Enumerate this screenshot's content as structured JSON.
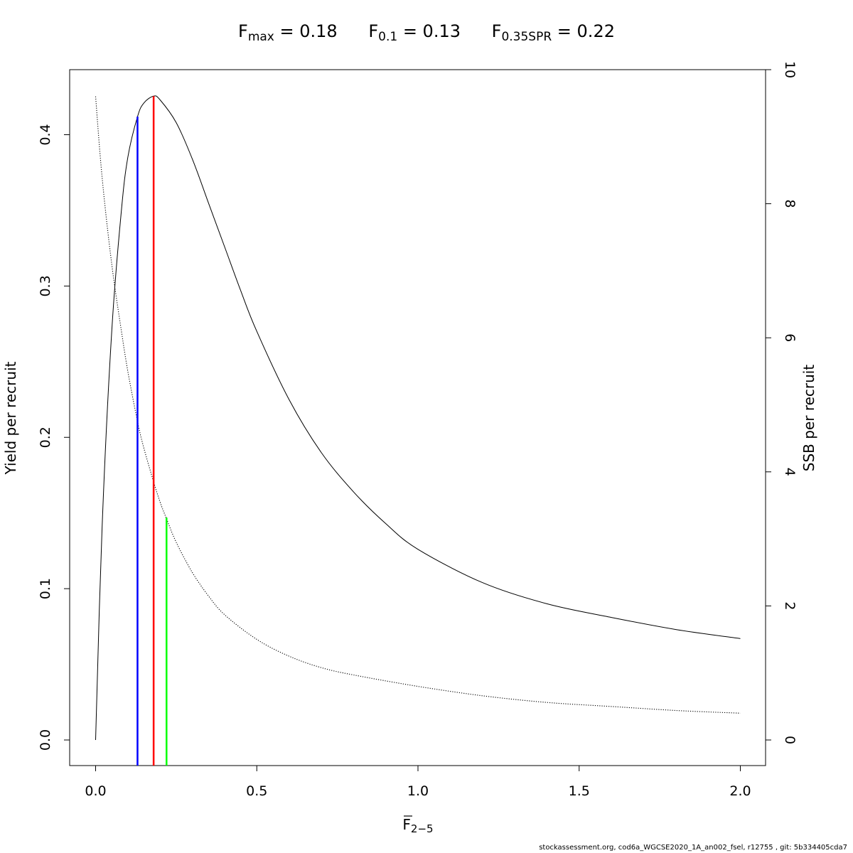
{
  "title": {
    "fmax": {
      "symbol": "F",
      "sub": "max",
      "text": " = 0.18"
    },
    "f01": {
      "symbol": "F",
      "sub": "0.1",
      "text": " = 0.13"
    },
    "fspr": {
      "symbol": "F",
      "sub": "0.35SPR",
      "text": " = 0.22"
    }
  },
  "footer": "stockassessment.org, cod6a_WGCSE2020_1A_an002_fsel, r12755 , git: 5b334405cda7",
  "chart_data": {
    "type": "line",
    "xlabel": {
      "symbol": "F",
      "sub": "2−5"
    },
    "ylabel": "Yield per recruit",
    "y2label": "SSB per recruit",
    "xlim": [
      0,
      2
    ],
    "xticks": [
      0.0,
      0.5,
      1.0,
      1.5,
      2.0
    ],
    "xtick_labels": [
      "0.0",
      "0.5",
      "1.0",
      "1.5",
      "2.0"
    ],
    "ylim": [
      0,
      0.425
    ],
    "yticks": [
      0.0,
      0.1,
      0.2,
      0.3,
      0.4
    ],
    "ytick_labels": [
      "0.0",
      "0.1",
      "0.2",
      "0.3",
      "0.4"
    ],
    "y2lim": [
      0,
      10
    ],
    "y2ticks": [
      0,
      2,
      4,
      6,
      8,
      10
    ],
    "y2tick_labels": [
      "0",
      "2",
      "4",
      "6",
      "8",
      "10"
    ],
    "grid": false,
    "series": [
      {
        "axis": "left",
        "style": "solid",
        "color": "#000000",
        "x": [
          0.0,
          0.02,
          0.05,
          0.08,
          0.1,
          0.13,
          0.15,
          0.18,
          0.2,
          0.25,
          0.3,
          0.35,
          0.4,
          0.45,
          0.5,
          0.6,
          0.7,
          0.8,
          0.9,
          1.0,
          1.2,
          1.4,
          1.6,
          1.8,
          2.0
        ],
        "y": [
          0.0,
          0.14,
          0.27,
          0.35,
          0.385,
          0.412,
          0.421,
          0.4255,
          0.423,
          0.408,
          0.384,
          0.355,
          0.326,
          0.297,
          0.27,
          0.225,
          0.19,
          0.164,
          0.143,
          0.126,
          0.104,
          0.09,
          0.081,
          0.073,
          0.067
        ]
      },
      {
        "axis": "right",
        "style": "dotted",
        "color": "#000000",
        "x": [
          0.0,
          0.02,
          0.05,
          0.08,
          0.1,
          0.13,
          0.15,
          0.18,
          0.2,
          0.22,
          0.25,
          0.3,
          0.35,
          0.4,
          0.5,
          0.6,
          0.7,
          0.8,
          1.0,
          1.2,
          1.4,
          1.6,
          1.8,
          2.0
        ],
        "y": [
          9.6,
          8.4,
          7.1,
          6.1,
          5.5,
          4.75,
          4.35,
          3.85,
          3.55,
          3.3,
          2.95,
          2.5,
          2.15,
          1.87,
          1.5,
          1.25,
          1.08,
          0.97,
          0.8,
          0.66,
          0.56,
          0.5,
          0.44,
          0.4
        ]
      }
    ],
    "reference_lines": [
      {
        "name": "F0.1",
        "x": 0.13,
        "y_top": 0.412,
        "color": "#0000ff"
      },
      {
        "name": "Fmax",
        "x": 0.18,
        "y_top": 0.4255,
        "color": "#ff0000"
      },
      {
        "name": "F0.35SPR",
        "x": 0.22,
        "y_top": 0.147,
        "color": "#00ff00"
      }
    ]
  }
}
